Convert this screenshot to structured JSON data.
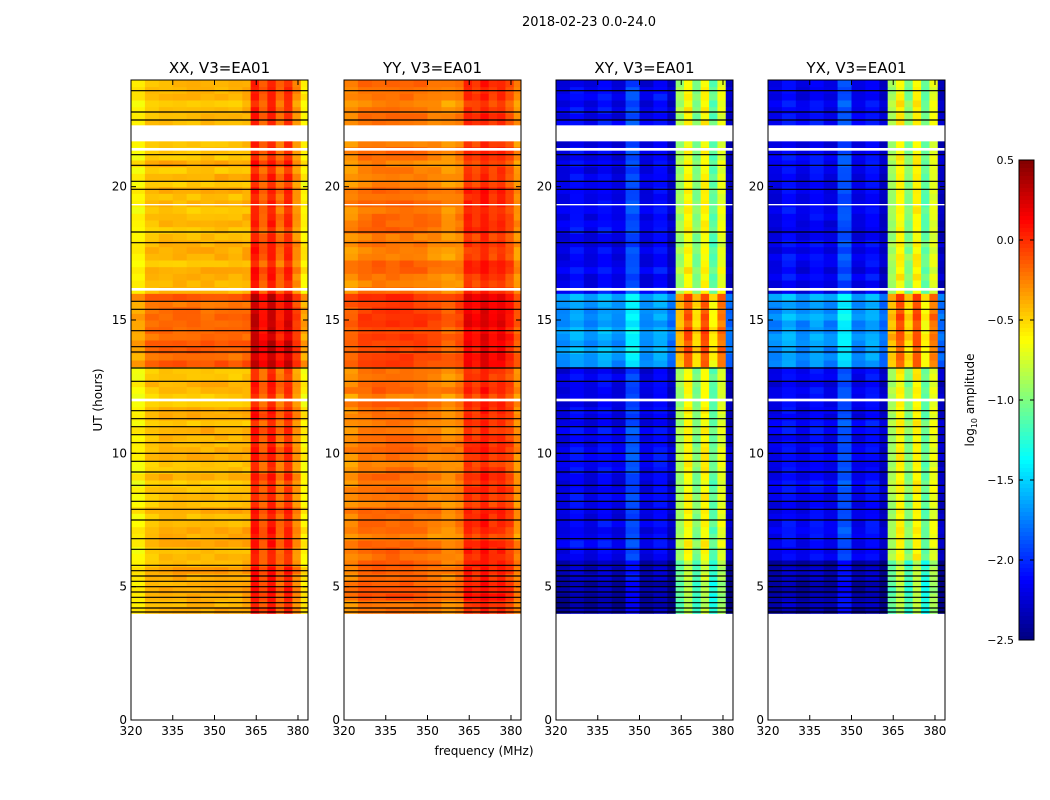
{
  "chart_data": {
    "type": "heatmap",
    "title": "2018-02-23 0.0-24.0",
    "xlabel": "frequency (MHz)",
    "ylabel": "UT (hours)",
    "xlim": [
      320,
      383.6
    ],
    "ylim": [
      0,
      24
    ],
    "xticks": [
      "320",
      "335",
      "350",
      "365",
      "380"
    ],
    "xtick_values": [
      320,
      335,
      350,
      365,
      380
    ],
    "yticks": [
      "0",
      "5",
      "10",
      "15",
      "20"
    ],
    "ytick_values": [
      0,
      5,
      10,
      15,
      20
    ],
    "colorbar": {
      "label": "log10 amplitude",
      "label_main": "log",
      "label_sub": "10",
      "label_rest": " amplitude",
      "colormap": "jet",
      "range": [
        -2.5,
        0.5
      ],
      "ticks": [
        "0.5",
        "0.0",
        "−0.5",
        "−1.0",
        "−1.5",
        "−2.0",
        "−2.5"
      ],
      "tick_values": [
        0.5,
        0.0,
        -0.5,
        -1.0,
        -1.5,
        -2.0,
        -2.5
      ]
    },
    "data_start_hour": 4.0,
    "white_gaps_hours": [
      [
        21.7,
        22.3
      ],
      [
        21.35,
        21.45
      ],
      [
        19.3,
        19.35
      ],
      [
        16.1,
        16.2
      ],
      [
        11.95,
        12.05
      ]
    ],
    "flagged_hours": [
      23.6,
      22.8,
      22.5,
      21.2,
      20.8,
      20.2,
      19.9,
      18.3,
      17.9,
      15.7,
      15.4,
      14.6,
      14.0,
      13.8,
      13.2,
      12.7,
      11.6,
      11.3,
      11.0,
      10.7,
      10.4,
      10.0,
      9.7,
      9.3,
      8.8,
      8.5,
      8.2,
      7.9,
      7.5,
      6.8,
      6.4,
      5.8,
      5.6,
      5.4,
      5.2,
      5.0,
      4.8,
      4.6,
      4.4,
      4.2,
      4.05
    ],
    "panels": [
      {
        "title": "XX, V3=EA01",
        "show_xlabel": false,
        "freq_bins": [
          320,
          325,
          330,
          335,
          340,
          345,
          350,
          355,
          360,
          363,
          366,
          369,
          372,
          375,
          378,
          381
        ],
        "log_amp": [
          -0.6,
          -0.45,
          -0.42,
          -0.42,
          -0.42,
          -0.42,
          -0.42,
          -0.42,
          -0.4,
          0.05,
          -0.15,
          0.05,
          -0.2,
          0.0,
          -0.3,
          -0.6
        ],
        "time_offsets": [
          {
            "from": 13.2,
            "to": 16.0,
            "offset": 0.25
          },
          {
            "from": 4.0,
            "to": 6.0,
            "offset": 0.05
          }
        ]
      },
      {
        "title": "YY, V3=EA01",
        "show_xlabel": true,
        "freq_bins": [
          320,
          325,
          330,
          335,
          340,
          345,
          350,
          355,
          360,
          363,
          366,
          369,
          372,
          375,
          378,
          381
        ],
        "log_amp": [
          -0.3,
          -0.22,
          -0.2,
          -0.2,
          -0.2,
          -0.22,
          -0.25,
          -0.3,
          -0.25,
          0.0,
          -0.05,
          0.05,
          -0.05,
          0.0,
          -0.1,
          -0.3
        ],
        "time_offsets": [
          {
            "from": 13.2,
            "to": 16.0,
            "offset": 0.15
          },
          {
            "from": 4.0,
            "to": 6.0,
            "offset": 0.05
          }
        ]
      },
      {
        "title": "XY, V3=EA01",
        "show_xlabel": false,
        "freq_bins": [
          320,
          325,
          330,
          335,
          340,
          345,
          350,
          355,
          360,
          363,
          366,
          369,
          372,
          375,
          378,
          381
        ],
        "log_amp": [
          -2.2,
          -2.1,
          -2.2,
          -2.1,
          -2.2,
          -1.9,
          -2.2,
          -2.1,
          -2.3,
          -0.9,
          -0.6,
          -1.0,
          -0.6,
          -1.1,
          -0.7,
          -2.3
        ],
        "time_offsets": [
          {
            "from": 13.2,
            "to": 16.0,
            "offset": 0.5
          },
          {
            "from": 4.0,
            "to": 6.0,
            "offset": -0.2
          }
        ]
      },
      {
        "title": "YX, V3=EA01",
        "show_xlabel": false,
        "freq_bins": [
          320,
          325,
          330,
          335,
          340,
          345,
          350,
          355,
          360,
          363,
          366,
          369,
          372,
          375,
          378,
          381
        ],
        "log_amp": [
          -2.2,
          -2.1,
          -2.2,
          -2.1,
          -2.2,
          -1.9,
          -2.2,
          -2.1,
          -2.3,
          -0.9,
          -0.6,
          -1.0,
          -0.6,
          -1.1,
          -0.7,
          -2.3
        ],
        "time_offsets": [
          {
            "from": 13.2,
            "to": 16.0,
            "offset": 0.5
          },
          {
            "from": 4.0,
            "to": 6.0,
            "offset": -0.2
          }
        ]
      }
    ]
  }
}
